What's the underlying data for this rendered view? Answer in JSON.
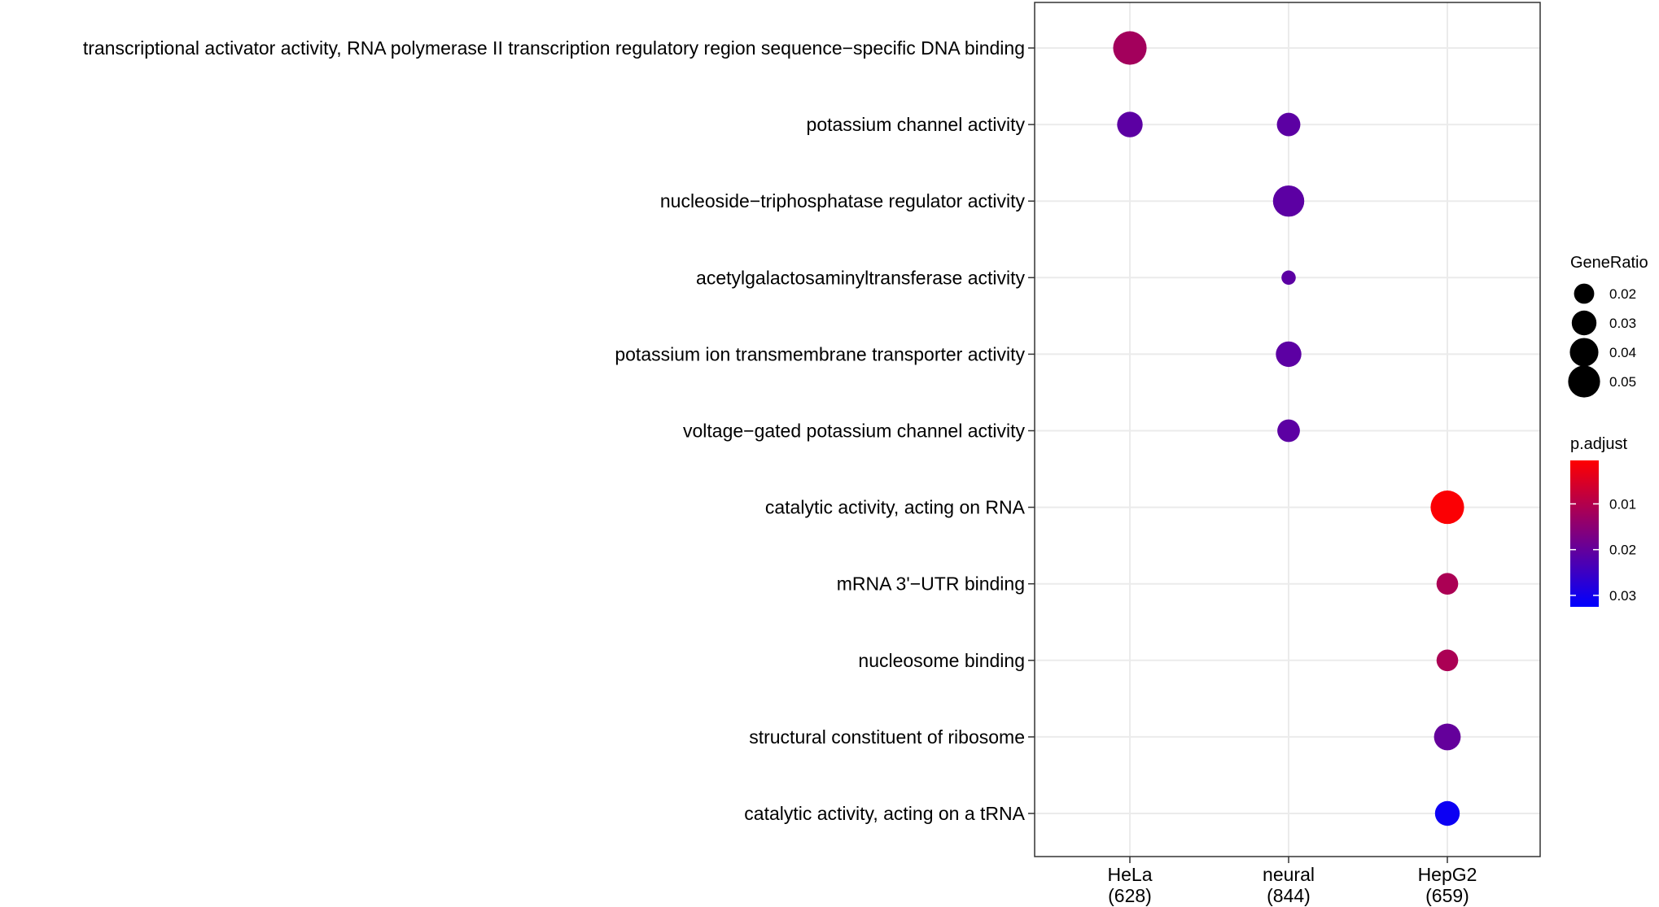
{
  "chart_data": {
    "type": "scatter",
    "title": "",
    "xlabel": "",
    "ylabel": "",
    "x_categories": [
      {
        "label": "HeLa",
        "count": "(628)"
      },
      {
        "label": "neural",
        "count": "(844)"
      },
      {
        "label": "HepG2",
        "count": "(659)"
      }
    ],
    "y_categories": [
      "transcriptional activator activity, RNA polymerase II transcription regulatory region sequence−specific DNA binding",
      "potassium channel activity",
      "nucleoside−triphosphatase regulator activity",
      "acetylgalactosaminyltransferase activity",
      "potassium ion transmembrane transporter activity",
      "voltage−gated potassium channel activity",
      "catalytic activity, acting on RNA",
      "mRNA 3'−UTR binding",
      "nucleosome binding",
      "structural constituent of ribosome",
      "catalytic activity, acting on a tRNA"
    ],
    "points": [
      {
        "x": "HeLa",
        "y": "transcriptional activator activity, RNA polymerase II transcription regulatory region sequence−specific DNA binding",
        "gene_ratio": 0.055,
        "p_adjust": 0.012
      },
      {
        "x": "HeLa",
        "y": "potassium channel activity",
        "gene_ratio": 0.032,
        "p_adjust": 0.021
      },
      {
        "x": "neural",
        "y": "potassium channel activity",
        "gene_ratio": 0.027,
        "p_adjust": 0.021
      },
      {
        "x": "neural",
        "y": "nucleoside−triphosphatase regulator activity",
        "gene_ratio": 0.048,
        "p_adjust": 0.021
      },
      {
        "x": "neural",
        "y": "acetylgalactosaminyltransferase activity",
        "gene_ratio": 0.01,
        "p_adjust": 0.021
      },
      {
        "x": "neural",
        "y": "potassium ion transmembrane transporter activity",
        "gene_ratio": 0.032,
        "p_adjust": 0.021
      },
      {
        "x": "neural",
        "y": "voltage−gated potassium channel activity",
        "gene_ratio": 0.025,
        "p_adjust": 0.021
      },
      {
        "x": "HepG2",
        "y": "catalytic activity, acting on RNA",
        "gene_ratio": 0.055,
        "p_adjust": 0.001
      },
      {
        "x": "HepG2",
        "y": "mRNA 3'−UTR binding",
        "gene_ratio": 0.023,
        "p_adjust": 0.011
      },
      {
        "x": "HepG2",
        "y": "nucleosome binding",
        "gene_ratio": 0.023,
        "p_adjust": 0.011
      },
      {
        "x": "HepG2",
        "y": "structural constituent of ribosome",
        "gene_ratio": 0.035,
        "p_adjust": 0.02
      },
      {
        "x": "HepG2",
        "y": "catalytic activity, acting on a tRNA",
        "gene_ratio": 0.03,
        "p_adjust": 0.031
      }
    ],
    "size_legend": {
      "title": "GeneRatio",
      "values": [
        0.02,
        0.03,
        0.04,
        0.05
      ],
      "labels": [
        "0.02",
        "0.03",
        "0.04",
        "0.05"
      ]
    },
    "color_legend": {
      "title": "p.adjust",
      "range": [
        0.0005,
        0.0325
      ],
      "low_color": "#FF0000",
      "high_color": "#0000FF",
      "ticks": [
        0.01,
        0.02,
        0.03
      ],
      "tick_labels": [
        "0.01",
        "0.02",
        "0.03"
      ]
    },
    "grid": true,
    "legend_position": "right"
  }
}
